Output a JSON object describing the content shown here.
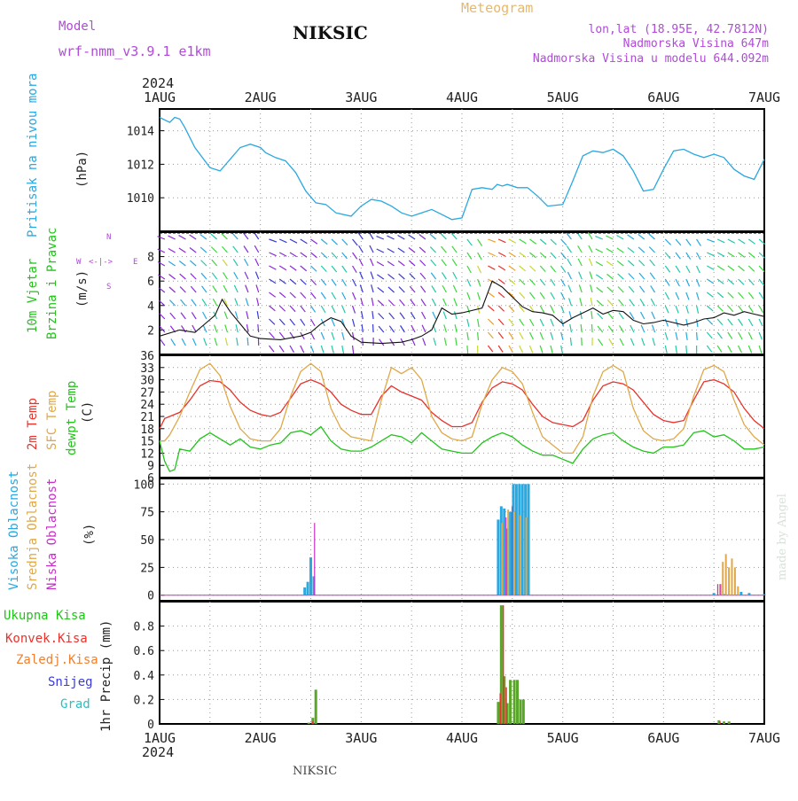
{
  "header": {
    "model_label": "Model",
    "model_value": "wrf-nmm_v3.9.1 e1km",
    "station_title": "NIKSIC",
    "meteogram_label": "Meteogram",
    "lonlat": "lon,lat (18.95E, 42.7812N)",
    "elevation": "Nadmorska Visina 647m",
    "elevation_model": "Nadmorska Visina u modelu 644.092m",
    "year": "2024",
    "credit": "made by Angel",
    "footer_station": "NIKSIC"
  },
  "colors": {
    "pressure": "#2aa8e0",
    "temp2m": "#e8322b",
    "sfc_temp": "#e0a848",
    "dewpoint": "#22c41a",
    "high_cloud": "#2aa8e0",
    "mid_cloud": "#e0a848",
    "low_cloud": "#c82fc8",
    "total_precip": "#5aa62a",
    "conv_precip": "#e8322b",
    "frozen_precip": "#f08030",
    "snow": "#3a3ad8",
    "hail": "#28c0c0",
    "label_purple": "#b04ad8",
    "title_orange": "#e8b868"
  },
  "chart_data": [
    {
      "id": "pressure",
      "type": "line",
      "ylabel_left": "Pritisak na nivou mora",
      "ylabel_unit": "(hPa)",
      "ylim": [
        1008.0,
        1015.3
      ],
      "yticks": [
        "1010",
        "1012",
        "1014"
      ],
      "x_unit": "days since 1 AUG 00Z",
      "series": [
        {
          "x": [
            0,
            0.1,
            0.15,
            0.2,
            0.25,
            0.35,
            0.5,
            0.6,
            0.7,
            0.8,
            0.9,
            1.0,
            1.05,
            1.15,
            1.25,
            1.35,
            1.45,
            1.55,
            1.65,
            1.75,
            1.9,
            2.0,
            2.1,
            2.2,
            2.3,
            2.4,
            2.5,
            2.6,
            2.7,
            2.8,
            2.9,
            3.0,
            3.1,
            3.2,
            3.3,
            3.35,
            3.4,
            3.45,
            3.55,
            3.65,
            3.75,
            3.85,
            4.0,
            4.1,
            4.2,
            4.3,
            4.4,
            4.5,
            4.6,
            4.7,
            4.8,
            4.9,
            5.0,
            5.1,
            5.2,
            5.3,
            5.4,
            5.5,
            5.6,
            5.7,
            5.8,
            5.9,
            6.0
          ],
          "y": [
            1014.8,
            1014.5,
            1014.8,
            1014.7,
            1014.2,
            1013.0,
            1011.8,
            1011.6,
            1012.3,
            1013.0,
            1013.2,
            1013.0,
            1012.7,
            1012.4,
            1012.2,
            1011.5,
            1010.4,
            1009.7,
            1009.6,
            1009.1,
            1008.9,
            1009.5,
            1009.9,
            1009.8,
            1009.5,
            1009.1,
            1008.9,
            1009.1,
            1009.3,
            1009.0,
            1008.7,
            1008.8,
            1010.5,
            1010.6,
            1010.5,
            1010.8,
            1010.7,
            1010.8,
            1010.6,
            1010.6,
            1010.1,
            1009.5,
            1009.6,
            1011.0,
            1012.5,
            1012.8,
            1012.7,
            1012.9,
            1012.5,
            1011.6,
            1010.4,
            1010.5,
            1011.7,
            1012.8,
            1012.9,
            1012.6,
            1012.4,
            1012.6,
            1012.4,
            1011.7,
            1011.3,
            1011.1,
            1012.3
          ]
        }
      ]
    },
    {
      "id": "wind",
      "type": "line",
      "ylabel_left": "10m Vjetar",
      "ylabel_left2": "Brzina i Pravac",
      "ylabel_unit": "(m/s)",
      "compass_labels": [
        "N",
        "W",
        "E",
        "S"
      ],
      "compass_glyph": "<-|->",
      "ylim": [
        0,
        10
      ],
      "yticks": [
        "2",
        "4",
        "6",
        "8"
      ],
      "x_unit": "days since 1 AUG 00Z",
      "speed": {
        "x": [
          0,
          0.2,
          0.35,
          0.45,
          0.55,
          0.62,
          0.7,
          0.8,
          0.9,
          1.0,
          1.2,
          1.4,
          1.5,
          1.6,
          1.7,
          1.8,
          1.9,
          2.0,
          2.2,
          2.4,
          2.5,
          2.6,
          2.7,
          2.8,
          2.9,
          3.0,
          3.2,
          3.3,
          3.4,
          3.5,
          3.6,
          3.7,
          3.8,
          3.9,
          4.0,
          4.1,
          4.2,
          4.3,
          4.4,
          4.5,
          4.6,
          4.7,
          4.8,
          4.9,
          5.0,
          5.2,
          5.3,
          5.4,
          5.5,
          5.6,
          5.7,
          5.8,
          5.9,
          6.0
        ],
        "y": [
          1.5,
          2.0,
          1.8,
          2.5,
          3.2,
          4.5,
          3.5,
          2.5,
          1.5,
          1.3,
          1.2,
          1.5,
          1.8,
          2.5,
          3.0,
          2.7,
          1.5,
          1.0,
          0.9,
          1.0,
          1.2,
          1.5,
          2.0,
          3.8,
          3.3,
          3.4,
          3.8,
          6.0,
          5.5,
          4.7,
          3.9,
          3.5,
          3.4,
          3.2,
          2.5,
          3.0,
          3.4,
          3.8,
          3.3,
          3.6,
          3.5,
          2.8,
          2.5,
          2.6,
          2.8,
          2.4,
          2.6,
          2.9,
          3.0,
          3.4,
          3.2,
          3.5,
          3.3,
          3.1
        ]
      },
      "arrow_hint": "wind barbs colored by speed, pointing in wind direction"
    },
    {
      "id": "temperature",
      "type": "line",
      "ylabel_left": "2m Temp",
      "ylabel_left2": "SFC Temp",
      "ylabel_left3": "dewpt Temp",
      "ylabel_unit": "(C)",
      "ylim": [
        6,
        36
      ],
      "yticks": [
        "6",
        "9",
        "12",
        "15",
        "18",
        "21",
        "24",
        "27",
        "30",
        "33",
        "36"
      ],
      "x_unit": "days since 1 AUG 00Z",
      "series": [
        {
          "name": "2m Temp",
          "x": [
            0,
            0.05,
            0.1,
            0.2,
            0.3,
            0.4,
            0.5,
            0.6,
            0.7,
            0.8,
            0.9,
            1.0,
            1.1,
            1.2,
            1.3,
            1.4,
            1.5,
            1.6,
            1.7,
            1.8,
            1.9,
            2.0,
            2.1,
            2.2,
            2.3,
            2.4,
            2.5,
            2.6,
            2.7,
            2.8,
            2.9,
            3.0,
            3.1,
            3.2,
            3.3,
            3.4,
            3.5,
            3.6,
            3.7,
            3.8,
            3.9,
            4.0,
            4.1,
            4.2,
            4.3,
            4.4,
            4.5,
            4.6,
            4.7,
            4.8,
            4.9,
            5.0,
            5.1,
            5.2,
            5.3,
            5.4,
            5.5,
            5.6,
            5.7,
            5.8,
            5.9,
            6.0
          ],
          "y": [
            18,
            20.5,
            21,
            22,
            25,
            28.5,
            29.8,
            29.5,
            27.5,
            24.5,
            22.5,
            21.5,
            21,
            22,
            25.5,
            29,
            30,
            29,
            27,
            24,
            22.5,
            21.5,
            21.5,
            26,
            28.5,
            27,
            26,
            25,
            22,
            20,
            18.5,
            18.5,
            19.5,
            24.5,
            28,
            29.5,
            29,
            27.5,
            24,
            21,
            19.5,
            19,
            18.5,
            20,
            25,
            28.5,
            29.5,
            29,
            27.5,
            24.5,
            21.5,
            20,
            19.5,
            20,
            25,
            29.5,
            30,
            29,
            27,
            23,
            20,
            18
          ]
        },
        {
          "name": "SFC Temp",
          "x": [
            0,
            0.05,
            0.1,
            0.2,
            0.3,
            0.4,
            0.5,
            0.6,
            0.7,
            0.8,
            0.9,
            1.0,
            1.1,
            1.2,
            1.3,
            1.4,
            1.5,
            1.6,
            1.7,
            1.8,
            1.9,
            2.0,
            2.1,
            2.2,
            2.3,
            2.4,
            2.5,
            2.6,
            2.7,
            2.8,
            2.9,
            3.0,
            3.1,
            3.2,
            3.3,
            3.4,
            3.5,
            3.6,
            3.7,
            3.8,
            3.9,
            4.0,
            4.1,
            4.2,
            4.3,
            4.4,
            4.5,
            4.6,
            4.7,
            4.8,
            4.9,
            5.0,
            5.1,
            5.2,
            5.3,
            5.4,
            5.5,
            5.6,
            5.7,
            5.8,
            5.9,
            6.0
          ],
          "y": [
            15,
            15,
            16.5,
            21,
            27,
            32.5,
            34,
            31,
            23.5,
            18,
            15.5,
            15,
            15,
            18,
            26,
            32,
            34,
            32,
            23,
            18,
            16,
            15.5,
            15,
            25,
            33,
            31.5,
            33,
            30,
            21,
            17,
            15.5,
            15,
            16,
            24,
            30,
            33,
            32,
            29,
            22,
            16,
            14,
            12,
            12,
            16,
            26,
            32,
            33.5,
            32,
            23,
            17.5,
            15.5,
            15,
            15.5,
            18,
            26,
            32.5,
            33.5,
            32,
            25,
            19,
            16,
            14
          ]
        },
        {
          "name": "dewpt Temp",
          "x": [
            0,
            0.05,
            0.1,
            0.15,
            0.2,
            0.3,
            0.4,
            0.5,
            0.6,
            0.7,
            0.8,
            0.9,
            1.0,
            1.1,
            1.2,
            1.3,
            1.4,
            1.5,
            1.6,
            1.7,
            1.8,
            1.9,
            2.0,
            2.1,
            2.2,
            2.3,
            2.4,
            2.5,
            2.6,
            2.7,
            2.8,
            2.9,
            3.0,
            3.1,
            3.2,
            3.3,
            3.4,
            3.5,
            3.6,
            3.7,
            3.8,
            3.9,
            4.0,
            4.1,
            4.2,
            4.3,
            4.4,
            4.5,
            4.6,
            4.7,
            4.8,
            4.9,
            5.0,
            5.1,
            5.2,
            5.3,
            5.4,
            5.5,
            5.6,
            5.7,
            5.8,
            5.9,
            6.0
          ],
          "y": [
            15,
            10,
            7.5,
            8,
            13,
            12.5,
            15.5,
            17,
            15.5,
            14,
            15.5,
            13.5,
            13,
            14,
            14.5,
            17,
            17.5,
            16.5,
            18.5,
            15,
            13,
            12.5,
            12.5,
            13.5,
            15,
            16.5,
            16,
            14.5,
            17,
            15,
            13,
            12.5,
            12,
            12,
            14.5,
            16,
            17,
            16,
            14,
            12.5,
            11.5,
            11.5,
            10.5,
            9.5,
            13,
            15.5,
            16.5,
            17,
            15,
            13.5,
            12.5,
            12,
            13.5,
            13.5,
            14,
            17,
            17.5,
            16,
            16.5,
            15,
            13,
            13,
            13.5
          ]
        }
      ]
    },
    {
      "id": "cloud",
      "type": "bar",
      "ylabel_left": "Visoka Oblacnost",
      "ylabel_left2": "Srednja Oblacnost",
      "ylabel_left3": "Niska Oblacnost",
      "ylabel_unit": "(%)",
      "ylim": [
        -5,
        105
      ],
      "yticks": [
        "0",
        "25",
        "50",
        "75",
        "100"
      ],
      "x_unit": "days since 1 AUG 00Z",
      "series": [
        {
          "name": "Visoka Oblacnost",
          "x": [
            1.44,
            1.47,
            1.5,
            1.53,
            3.36,
            3.39,
            3.42,
            3.45,
            3.48,
            3.51,
            3.54,
            3.57,
            3.6,
            3.63,
            3.66,
            5.5,
            5.6,
            5.77,
            5.85,
            6.0
          ],
          "values": [
            7,
            12,
            34,
            17,
            68,
            80,
            78,
            60,
            75,
            100,
            100,
            100,
            100,
            100,
            100,
            2,
            1,
            3,
            2,
            1
          ]
        },
        {
          "name": "Srednja Oblacnost",
          "x": [
            3.39,
            3.45,
            3.51,
            3.57,
            3.63,
            5.55,
            5.58,
            5.61,
            5.64,
            5.67,
            5.7,
            5.73
          ],
          "values": [
            65,
            77,
            75,
            72,
            70,
            10,
            30,
            37,
            25,
            33,
            25,
            8
          ]
        },
        {
          "name": "Niska Oblacnost",
          "x": [
            1.52,
            3.42,
            3.48,
            5.52,
            5.55
          ],
          "values": [
            65,
            70,
            80,
            10,
            10
          ]
        }
      ]
    },
    {
      "id": "precip",
      "type": "bar",
      "ylabel_left": "Ukupna Kisa",
      "ylabel_left2": "Konvek.Kisa",
      "ylabel_left3": "Zaledj.Kisa",
      "ylabel_left4": "Snijeg",
      "ylabel_left5": "Grad",
      "ylabel_unit": "1hr Precip (mm)",
      "ylim": [
        0,
        1.0
      ],
      "yticks": [
        "0",
        "0.2",
        "0.4",
        "0.6",
        "0.8"
      ],
      "x_unit": "days since 1 AUG 00Z",
      "series": [
        {
          "name": "Ukupna Kisa",
          "x": [
            1.48,
            1.52,
            1.55,
            3.36,
            3.39,
            3.42,
            3.45,
            3.48,
            3.52,
            3.55,
            3.58,
            3.61,
            5.55,
            5.6,
            5.65
          ],
          "values": [
            0.01,
            0.05,
            0.28,
            0.18,
            0.97,
            0.39,
            0.17,
            0.36,
            0.36,
            0.36,
            0.2,
            0.2,
            0.03,
            0.02,
            0.02
          ]
        },
        {
          "name": "Konvek.Kisa",
          "x": [
            1.52,
            3.38,
            3.41,
            3.44,
            5.56
          ],
          "values": [
            0.02,
            0.25,
            0.97,
            0.3,
            0.02
          ]
        }
      ]
    }
  ],
  "xaxis": {
    "ticks_top": [
      "1AUG",
      "2AUG",
      "3AUG",
      "4AUG",
      "5AUG",
      "6AUG",
      "7AUG"
    ],
    "ticks_bottom": [
      "1AUG",
      "2AUG",
      "3AUG",
      "4AUG",
      "5AUG",
      "6AUG",
      "7AUG"
    ],
    "xlim": [
      0,
      6
    ]
  }
}
